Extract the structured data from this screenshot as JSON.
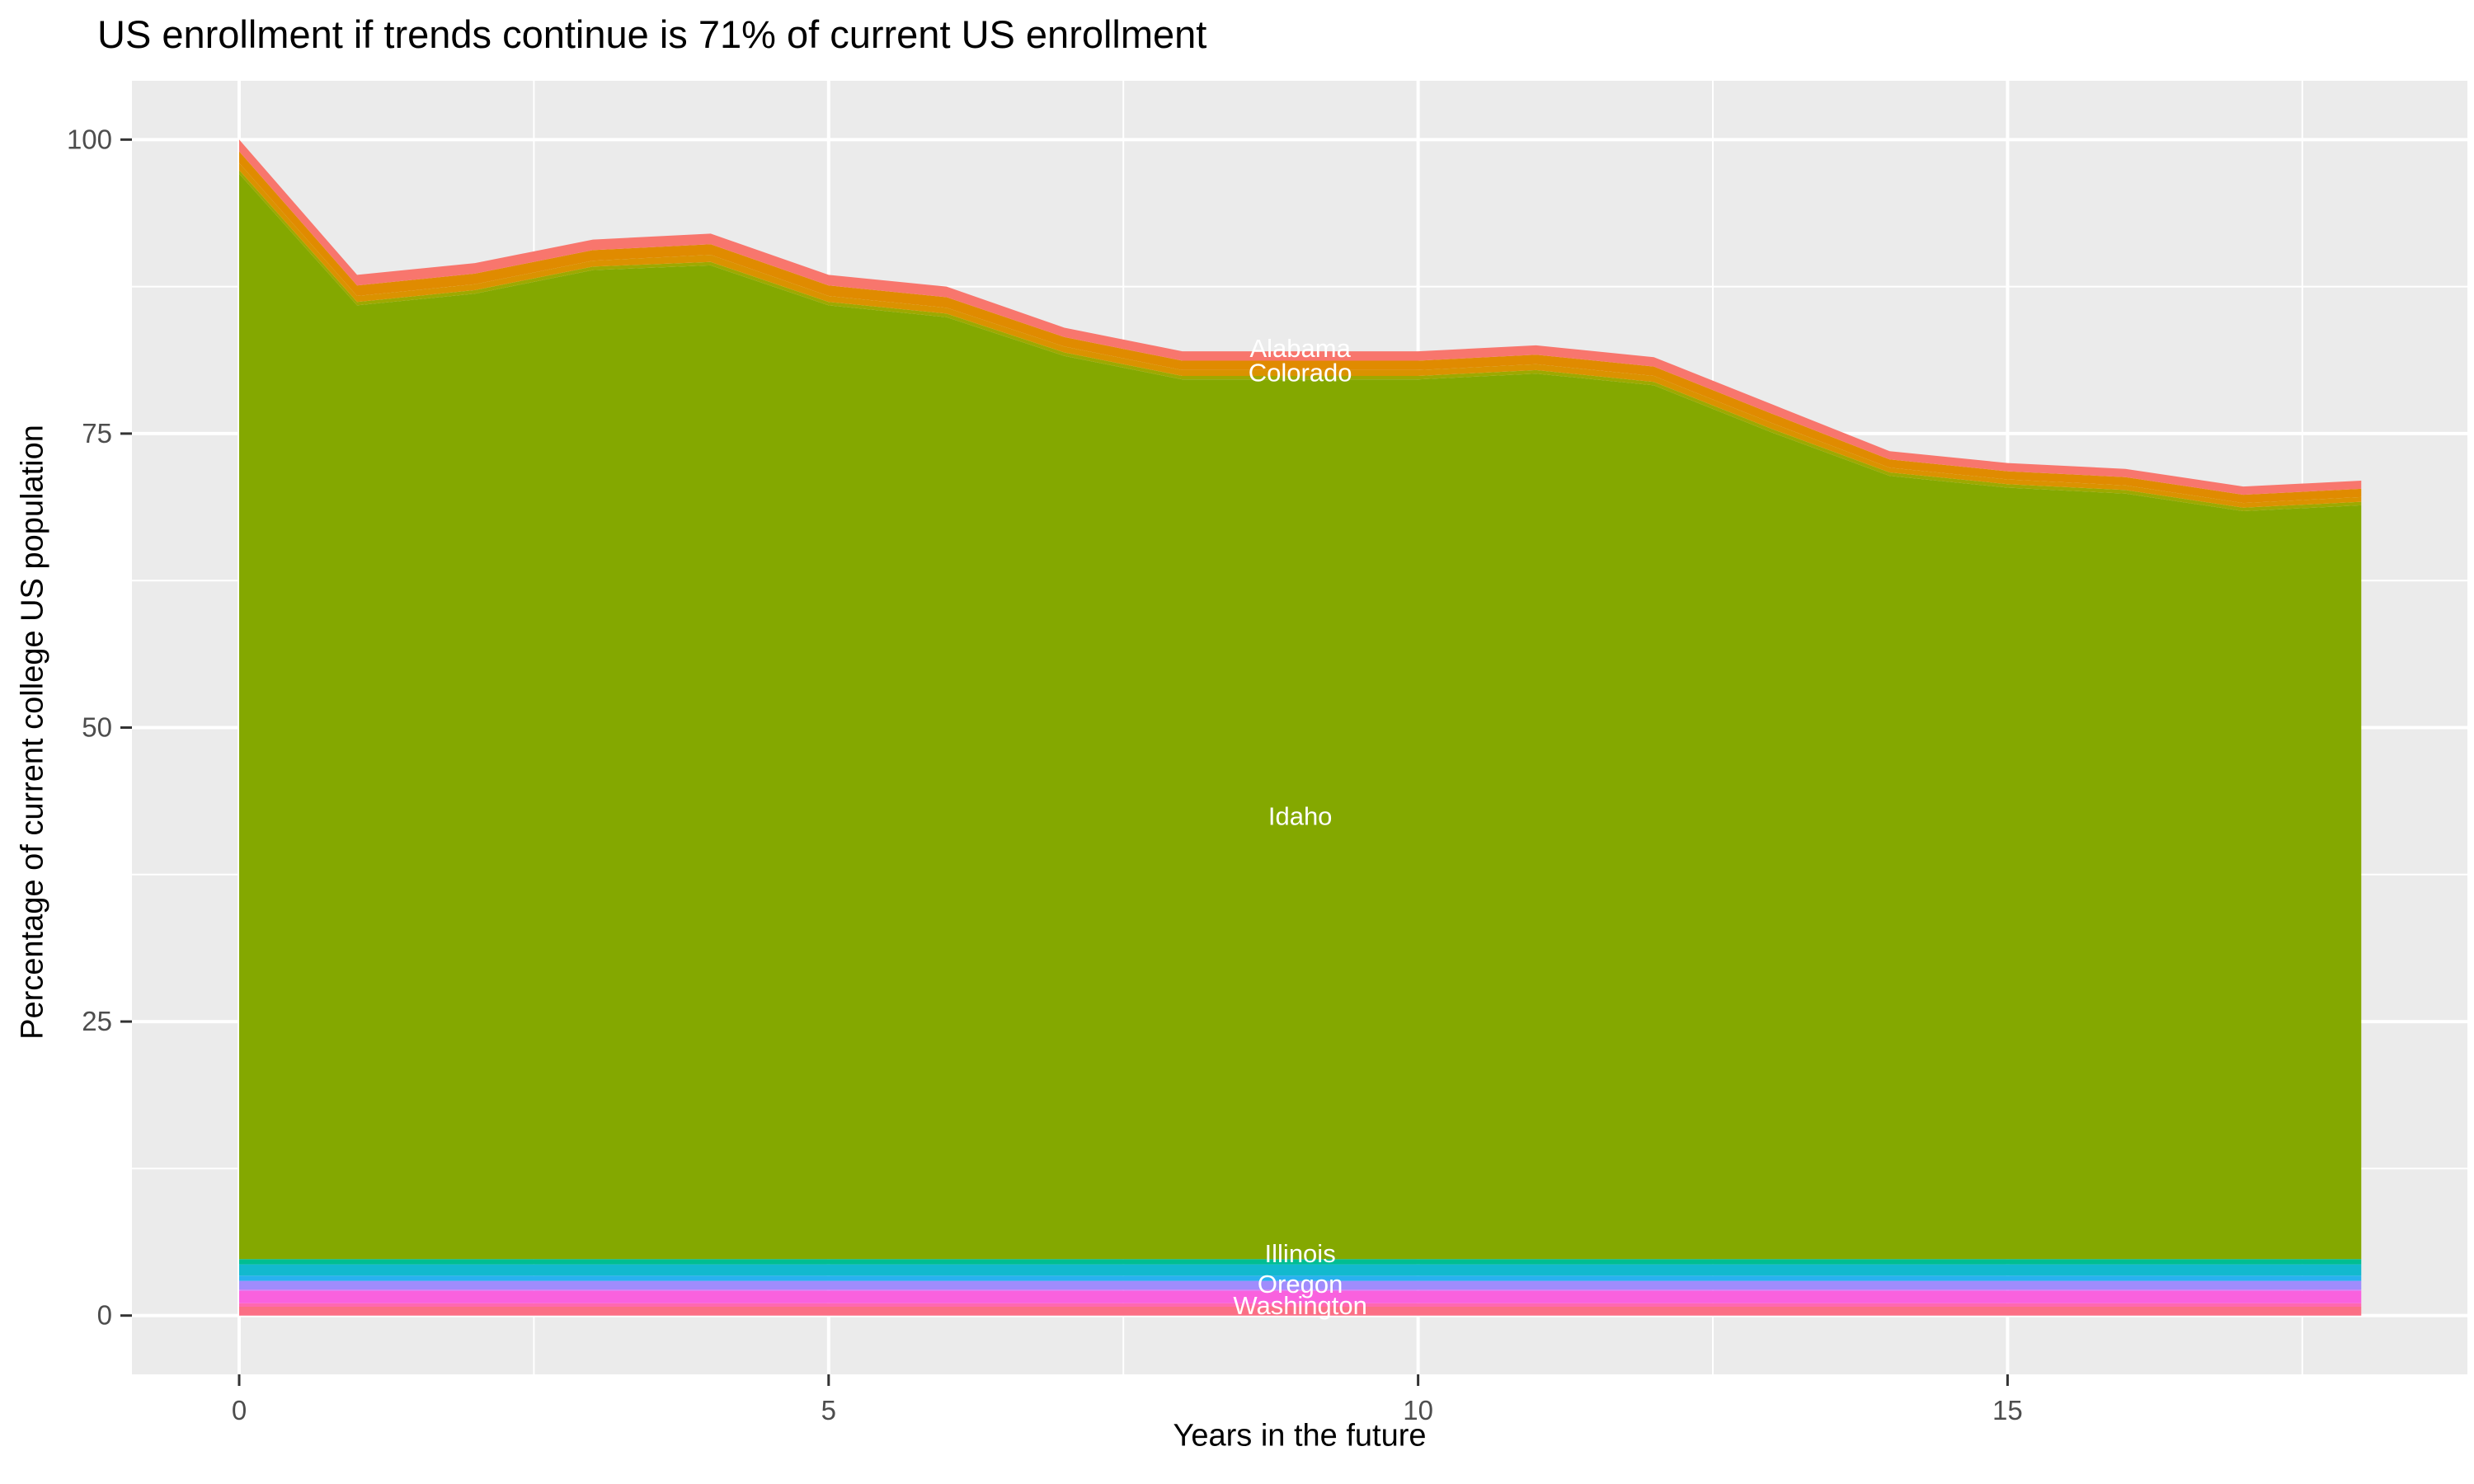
{
  "chart_data": {
    "type": "area",
    "stacked": true,
    "title": "US enrollment if trends continue is 71% of current US enrollment",
    "xlabel": "Years in the future",
    "ylabel": "Percentage of current college US population",
    "x": [
      0,
      1,
      2,
      3,
      4,
      5,
      6,
      7,
      8,
      9,
      10,
      11,
      12,
      13,
      14,
      15,
      16,
      17,
      18
    ],
    "x_ticks": [
      0,
      5,
      10,
      15
    ],
    "y_ticks": [
      0,
      25,
      50,
      75,
      100
    ],
    "xlim": [
      -0.9,
      18.9
    ],
    "ylim": [
      -5,
      105
    ],
    "grid": "white major and minor gridlines on gray panel",
    "legend": "none - white state labels drawn on the areas",
    "panel_bg": "#EBEBEB",
    "grid_color": "#FFFFFF",
    "tick_color": "#333333",
    "total_top_line": [
      100,
      88.5,
      89.5,
      91.5,
      92,
      88.5,
      87.5,
      84,
      82,
      82,
      82,
      82.5,
      81.5,
      77.5,
      73.5,
      72.5,
      72,
      70.5,
      71
    ],
    "label_x_year": 9,
    "series": [
      {
        "name": "alabama",
        "label": "Alabama",
        "label_y": 82.3,
        "color": "#F8766D",
        "values": [
          1.0,
          0.9,
          0.9,
          0.9,
          0.9,
          0.9,
          0.9,
          0.8,
          0.8,
          0.8,
          0.8,
          0.8,
          0.8,
          0.8,
          0.7,
          0.7,
          0.7,
          0.7,
          0.7
        ]
      },
      {
        "name": "other-states-band-orange",
        "label": "",
        "color": "#E08B00",
        "values": [
          1.0,
          0.9,
          0.9,
          0.9,
          0.9,
          0.9,
          0.9,
          0.8,
          0.8,
          0.8,
          0.8,
          0.8,
          0.8,
          0.8,
          0.7,
          0.7,
          0.7,
          0.7,
          0.7
        ]
      },
      {
        "name": "colorado",
        "label": "Colorado",
        "label_y": 80.2,
        "color": "#DB9200",
        "values": [
          0.6,
          0.5,
          0.5,
          0.5,
          0.6,
          0.5,
          0.5,
          0.5,
          0.5,
          0.5,
          0.5,
          0.5,
          0.5,
          0.5,
          0.4,
          0.4,
          0.4,
          0.4,
          0.4
        ]
      },
      {
        "name": "other-states-band-olive",
        "label": "",
        "color": "#9EA900",
        "value": 0.3
      },
      {
        "name": "idaho",
        "label": "Idaho",
        "label_y": 42.5,
        "color": "#84A800",
        "values": [
          92.3,
          81.1,
          82.1,
          84.1,
          84.5,
          81.1,
          80.1,
          76.8,
          74.8,
          74.8,
          74.8,
          75.3,
          74.3,
          70.3,
          66.6,
          65.6,
          65.1,
          63.6,
          64.1
        ]
      },
      {
        "name": "other-states-band-teal",
        "label": "",
        "color": "#00BE92",
        "value": 0.45
      },
      {
        "name": "illinois",
        "label": "Illinois",
        "label_y": 5.3,
        "color": "#12B9CE",
        "value": 0.95
      },
      {
        "name": "other-states-band-lightblue",
        "label": "",
        "color": "#29B1F0",
        "value": 0.45
      },
      {
        "name": "oregon",
        "label": "Oregon",
        "label_y": 2.7,
        "color": "#A08CFC",
        "value": 0.75
      },
      {
        "name": "other-states-band-violet",
        "label": "",
        "color": "#DB72F5",
        "value": 0.1
      },
      {
        "name": "washington",
        "label": "Washington",
        "label_y": 0.9,
        "color": "#F961DE",
        "value": 1.05
      },
      {
        "name": "other-states-band-pink",
        "label": "",
        "color": "#FF68B0",
        "value": 0.3
      },
      {
        "name": "other-states-band-rose",
        "label": "",
        "color": "#FB6F85",
        "value": 0.75
      }
    ]
  }
}
